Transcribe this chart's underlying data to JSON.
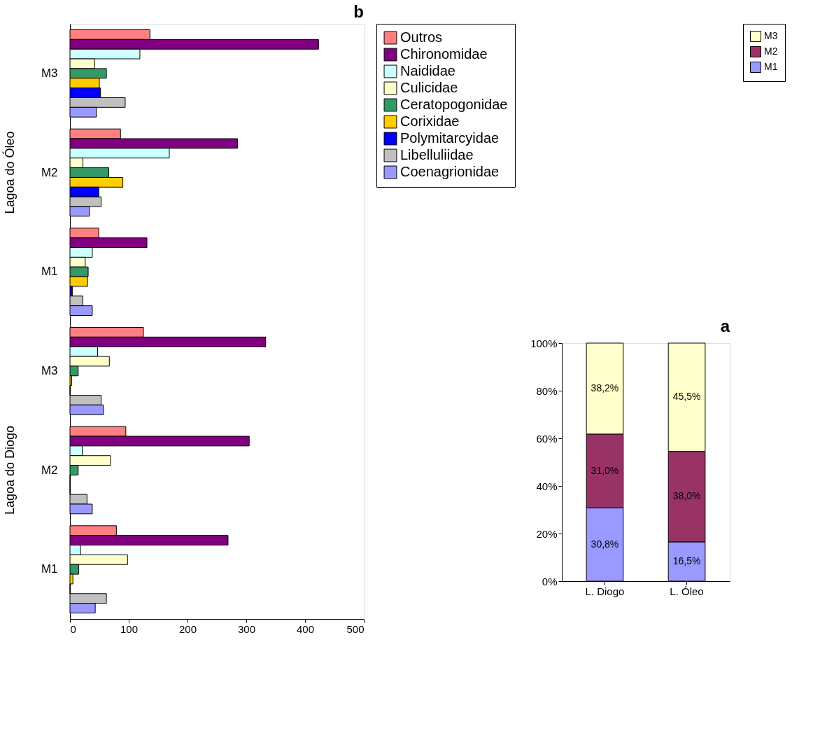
{
  "chart_data": [
    {
      "type": "bar",
      "orientation": "horizontal",
      "title": "b",
      "categories": [
        "M3",
        "M2",
        "M1",
        "M3",
        "M2",
        "M1"
      ],
      "annotations": [
        "Lagoa do Óleo",
        "Lagoa do Diogo"
      ],
      "series": [
        {
          "name": "Outros",
          "color": "#ff8080",
          "values": [
            136,
            86,
            49,
            125,
            95,
            79
          ]
        },
        {
          "name": "Chironomidae",
          "color": "#800080",
          "values": [
            423,
            285,
            131,
            333,
            305,
            269
          ]
        },
        {
          "name": "Naididae",
          "color": "#ccffff",
          "values": [
            119,
            169,
            38,
            47,
            21,
            18
          ]
        },
        {
          "name": "Culicidae",
          "color": "#ffffcc",
          "values": [
            42,
            22,
            26,
            67,
            69,
            98
          ]
        },
        {
          "name": "Ceratopogonidae",
          "color": "#339966",
          "values": [
            62,
            66,
            31,
            14,
            14,
            15
          ]
        },
        {
          "name": "Corixidae",
          "color": "#ffcc00",
          "values": [
            50,
            90,
            30,
            3,
            0,
            5
          ]
        },
        {
          "name": "Polymitarcyidae",
          "color": "#0000ff",
          "values": [
            52,
            49,
            4,
            0,
            0,
            0
          ]
        },
        {
          "name": "Libelluliidae",
          "color": "#c0c0c0",
          "values": [
            94,
            53,
            22,
            53,
            29,
            62
          ]
        },
        {
          "name": "Coenagrionidae",
          "color": "#9999ff",
          "values": [
            45,
            33,
            38,
            57,
            38,
            43
          ]
        }
      ],
      "xlim": [
        0,
        500
      ],
      "xticks": [
        0,
        100,
        200,
        300,
        400,
        500
      ],
      "grid": false,
      "legend": "top right"
    },
    {
      "type": "bar",
      "stacked": true,
      "title": "a",
      "categories": [
        "L. Diogo",
        "L. Óleo"
      ],
      "series": [
        {
          "name": "M1",
          "color": "#9999ff",
          "values": [
            30.8,
            16.5
          ],
          "value_labels": [
            "30,8%",
            "16,5%"
          ]
        },
        {
          "name": "M2",
          "color": "#993366",
          "values": [
            31.0,
            38.0
          ],
          "value_labels": [
            "31,0%",
            "38,0%"
          ]
        },
        {
          "name": "M3",
          "color": "#ffffcc",
          "values": [
            38.2,
            45.5
          ],
          "value_labels": [
            "38,2%",
            "45,5%"
          ]
        }
      ],
      "ylim": [
        0,
        100
      ],
      "yticks": [
        {
          "value": 0,
          "label": "0%"
        },
        {
          "value": 20,
          "label": "20%"
        },
        {
          "value": 40,
          "label": "40%"
        },
        {
          "value": 60,
          "label": "60%"
        },
        {
          "value": 80,
          "label": "80%"
        },
        {
          "value": 100,
          "label": "100%"
        }
      ],
      "grid": false,
      "legend": "right"
    }
  ]
}
